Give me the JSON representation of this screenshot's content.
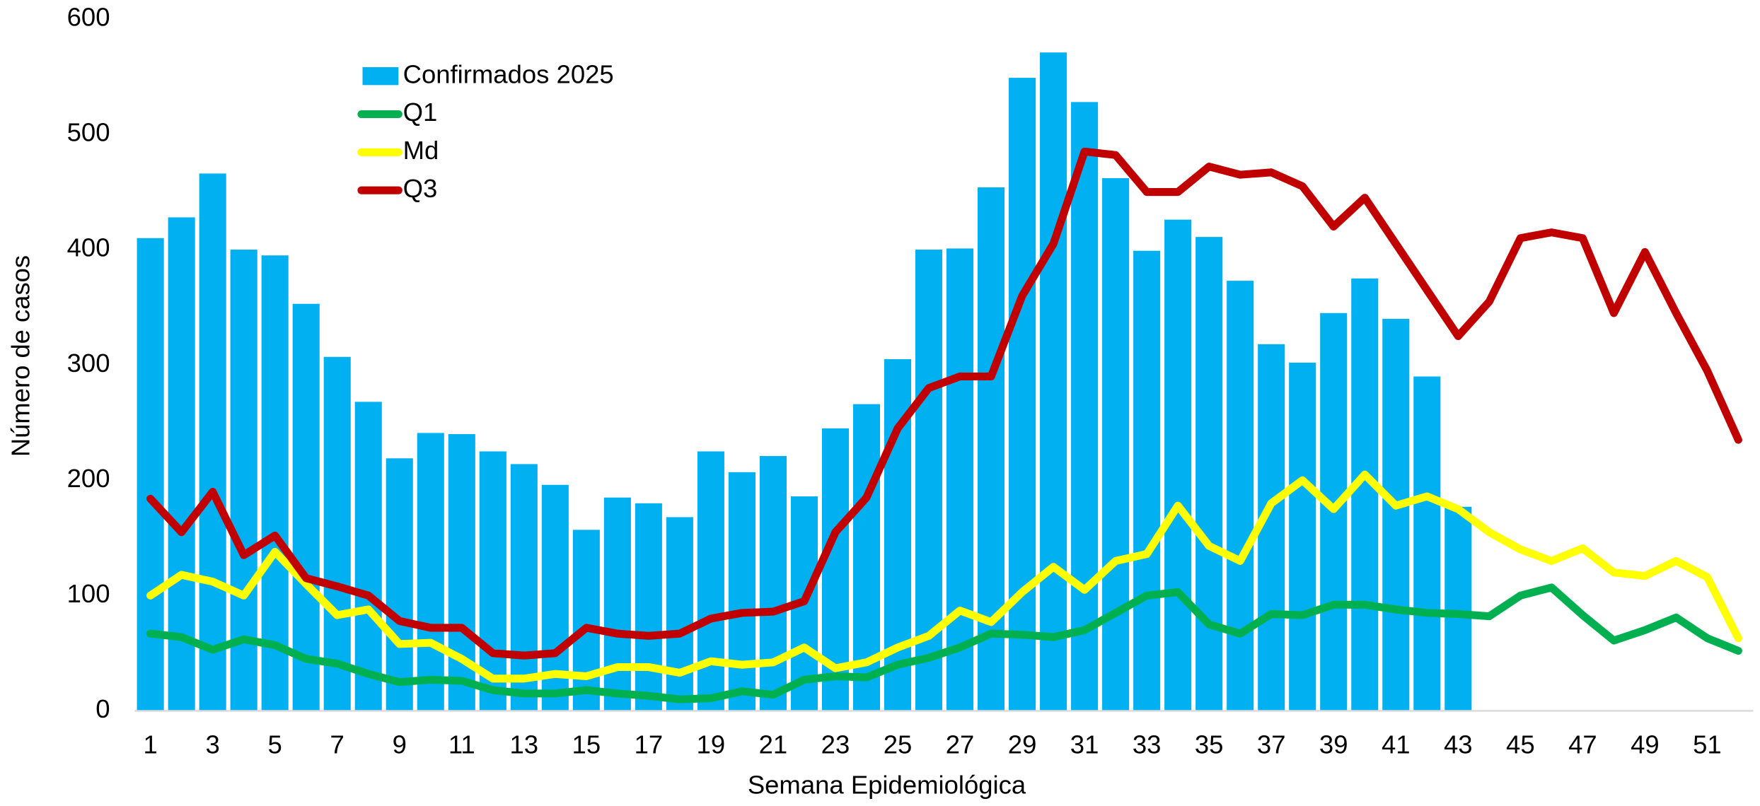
{
  "chart_data": {
    "type": "bar-line",
    "x_label": "Semana Epidemiológica",
    "y_label": "Número de casos",
    "categories": [
      1,
      null,
      3,
      null,
      5,
      null,
      7,
      null,
      9,
      null,
      11,
      null,
      13,
      null,
      15,
      null,
      17,
      null,
      19,
      null,
      21,
      null,
      23,
      null,
      25,
      null,
      27,
      null,
      29,
      null,
      31,
      null,
      33,
      null,
      35,
      null,
      37,
      null,
      39,
      null,
      41,
      null,
      43,
      null,
      45,
      null,
      47,
      null,
      49,
      null,
      51,
      null
    ],
    "series": [
      {
        "name": "Confirmados 2025",
        "type": "bar",
        "color": "#00b0f0",
        "values": [
          410,
          428,
          466,
          400,
          395,
          353,
          307,
          268,
          219,
          241,
          240,
          225,
          214,
          196,
          157,
          185,
          180,
          168,
          225,
          207,
          221,
          186,
          245,
          266,
          305,
          400,
          401,
          454,
          549,
          571,
          528,
          462,
          399,
          426,
          411,
          373,
          318,
          302,
          345,
          375,
          340,
          290,
          177,
          null,
          null,
          null,
          null,
          null,
          null,
          null,
          null,
          null
        ]
      },
      {
        "name": "Q1",
        "type": "line",
        "color": "#00b050",
        "values": [
          67,
          64,
          53,
          62,
          57,
          45,
          41,
          32,
          25,
          27,
          26,
          18,
          15,
          15,
          18,
          15,
          13,
          10,
          11,
          17,
          14,
          27,
          30,
          29,
          40,
          46,
          55,
          67,
          66,
          64,
          70,
          85,
          100,
          103,
          75,
          67,
          84,
          83,
          92,
          92,
          88,
          85,
          84,
          82,
          100,
          107,
          83,
          61,
          70,
          81,
          63,
          52
        ]
      },
      {
        "name": "Md",
        "type": "line",
        "color": "#ffff00",
        "values": [
          100,
          118,
          112,
          100,
          138,
          110,
          83,
          88,
          58,
          59,
          45,
          28,
          28,
          32,
          30,
          38,
          38,
          33,
          43,
          40,
          42,
          55,
          37,
          42,
          55,
          65,
          87,
          77,
          103,
          125,
          105,
          130,
          136,
          178,
          143,
          130,
          180,
          200,
          175,
          205,
          178,
          186,
          175,
          155,
          140,
          130,
          141,
          120,
          117,
          130,
          116,
          63
        ]
      },
      {
        "name": "Q3",
        "type": "line",
        "color": "#c00000",
        "values": [
          184,
          155,
          190,
          135,
          152,
          115,
          108,
          100,
          78,
          72,
          72,
          50,
          48,
          50,
          72,
          67,
          65,
          67,
          80,
          85,
          86,
          95,
          155,
          185,
          245,
          280,
          290,
          290,
          360,
          405,
          485,
          482,
          450,
          450,
          472,
          465,
          467,
          455,
          420,
          445,
          405,
          365,
          325,
          355,
          410,
          415,
          410,
          345,
          398,
          345,
          295,
          235
        ]
      }
    ],
    "ylim": [
      0,
      600
    ],
    "yticks": [
      0,
      100,
      200,
      300,
      400,
      500,
      600
    ],
    "grid": false,
    "legend": "top-left"
  }
}
